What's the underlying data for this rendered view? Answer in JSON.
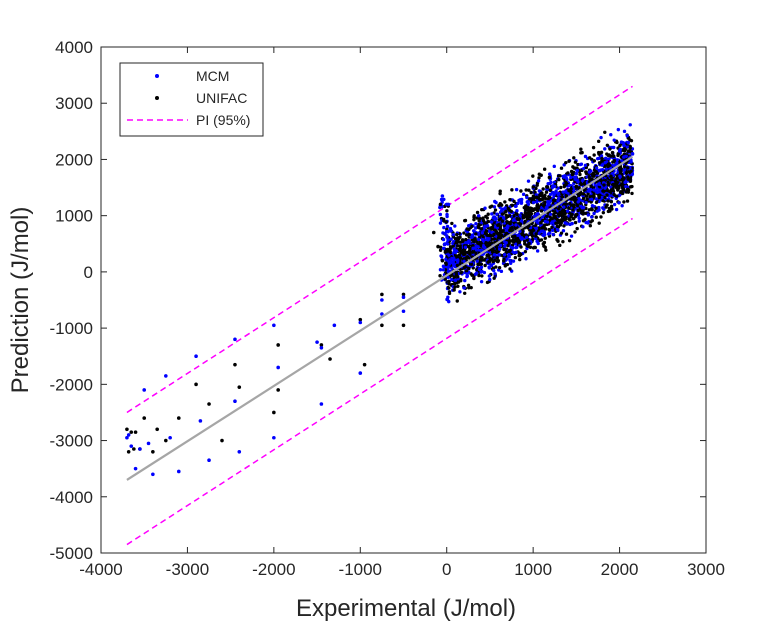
{
  "chart_data": {
    "type": "scatter",
    "title": "",
    "xlabel": "Experimental (J/mol)",
    "ylabel": "Prediction (J/mol)",
    "xlim": [
      -4000,
      3000
    ],
    "ylim": [
      -5000,
      4000
    ],
    "xticks": [
      -4000,
      -3000,
      -2000,
      -1000,
      0,
      1000,
      2000,
      3000
    ],
    "yticks": [
      -5000,
      -4000,
      -3000,
      -2000,
      -1000,
      0,
      1000,
      2000,
      3000,
      4000
    ],
    "grid": false,
    "legend_position": "top-left",
    "series": [
      {
        "name": "MCM",
        "mode": "markers",
        "color": "#0000ff",
        "x": [
          -3700,
          -3680,
          -3650,
          -3600,
          -3550,
          -3500,
          -3450,
          -3400,
          -3250,
          -3200,
          -3100,
          -2900,
          -2850,
          -2750,
          -2450,
          -2450,
          -2400,
          -2000,
          -2000,
          -1950,
          -1500,
          -1450,
          -1450,
          -1300,
          -1000,
          -1000,
          -750,
          -750,
          -500,
          -500,
          2000,
          2050,
          2100,
          2150,
          1500,
          1800,
          1250,
          -50,
          20,
          50,
          100
        ],
        "y": [
          -2950,
          -2900,
          -3100,
          -3500,
          -3150,
          -2100,
          -3050,
          -3600,
          -1850,
          -2950,
          -3550,
          -1500,
          -2650,
          -3350,
          -1200,
          -2300,
          -3200,
          -950,
          -2950,
          -1700,
          -1250,
          -1350,
          -2350,
          -950,
          -900,
          -1800,
          -500,
          -750,
          -450,
          -700,
          2150,
          2250,
          2300,
          2100,
          1750,
          1900,
          1400,
          1350,
          1200,
          200,
          -150
        ]
      },
      {
        "name": "UNIFAC",
        "mode": "markers",
        "color": "#000000",
        "x": [
          -3700,
          -3680,
          -3650,
          -3620,
          -3600,
          -3550,
          -3500,
          -3400,
          -3350,
          -3250,
          -3100,
          -2900,
          -2750,
          -2600,
          -2450,
          -2400,
          -2000,
          -1950,
          -1950,
          -1450,
          -1350,
          -1000,
          -950,
          -750,
          -750,
          -500,
          -500,
          -150,
          -100,
          -50,
          0,
          1600,
          1900,
          2100
        ],
        "y": [
          -2800,
          -3200,
          -2850,
          -3150,
          -2850,
          -3150,
          -2600,
          -3200,
          -2800,
          -3000,
          -2600,
          -2000,
          -2350,
          -3000,
          -1650,
          -2050,
          -2500,
          -1300,
          -2100,
          -1300,
          -1550,
          -850,
          -1650,
          -400,
          -950,
          -400,
          -950,
          700,
          450,
          200,
          -50,
          1500,
          1700,
          1650
        ]
      },
      {
        "name": "PI (95%)",
        "mode": "dashed-lines",
        "color": "#ff00ff",
        "upper": {
          "x": [
            -3700,
            2150
          ],
          "y": [
            -2500,
            3300
          ]
        },
        "lower": {
          "x": [
            -3700,
            2150
          ],
          "y": [
            -4850,
            950
          ]
        }
      }
    ],
    "fit_line": {
      "color": "#a6a6a6",
      "x": [
        -3700,
        2150
      ],
      "y": [
        -3700,
        2050
      ]
    },
    "dense_cluster": {
      "x_range": [
        0,
        2150
      ],
      "y_center_slope": 0.85,
      "y_spread": 650
    }
  }
}
